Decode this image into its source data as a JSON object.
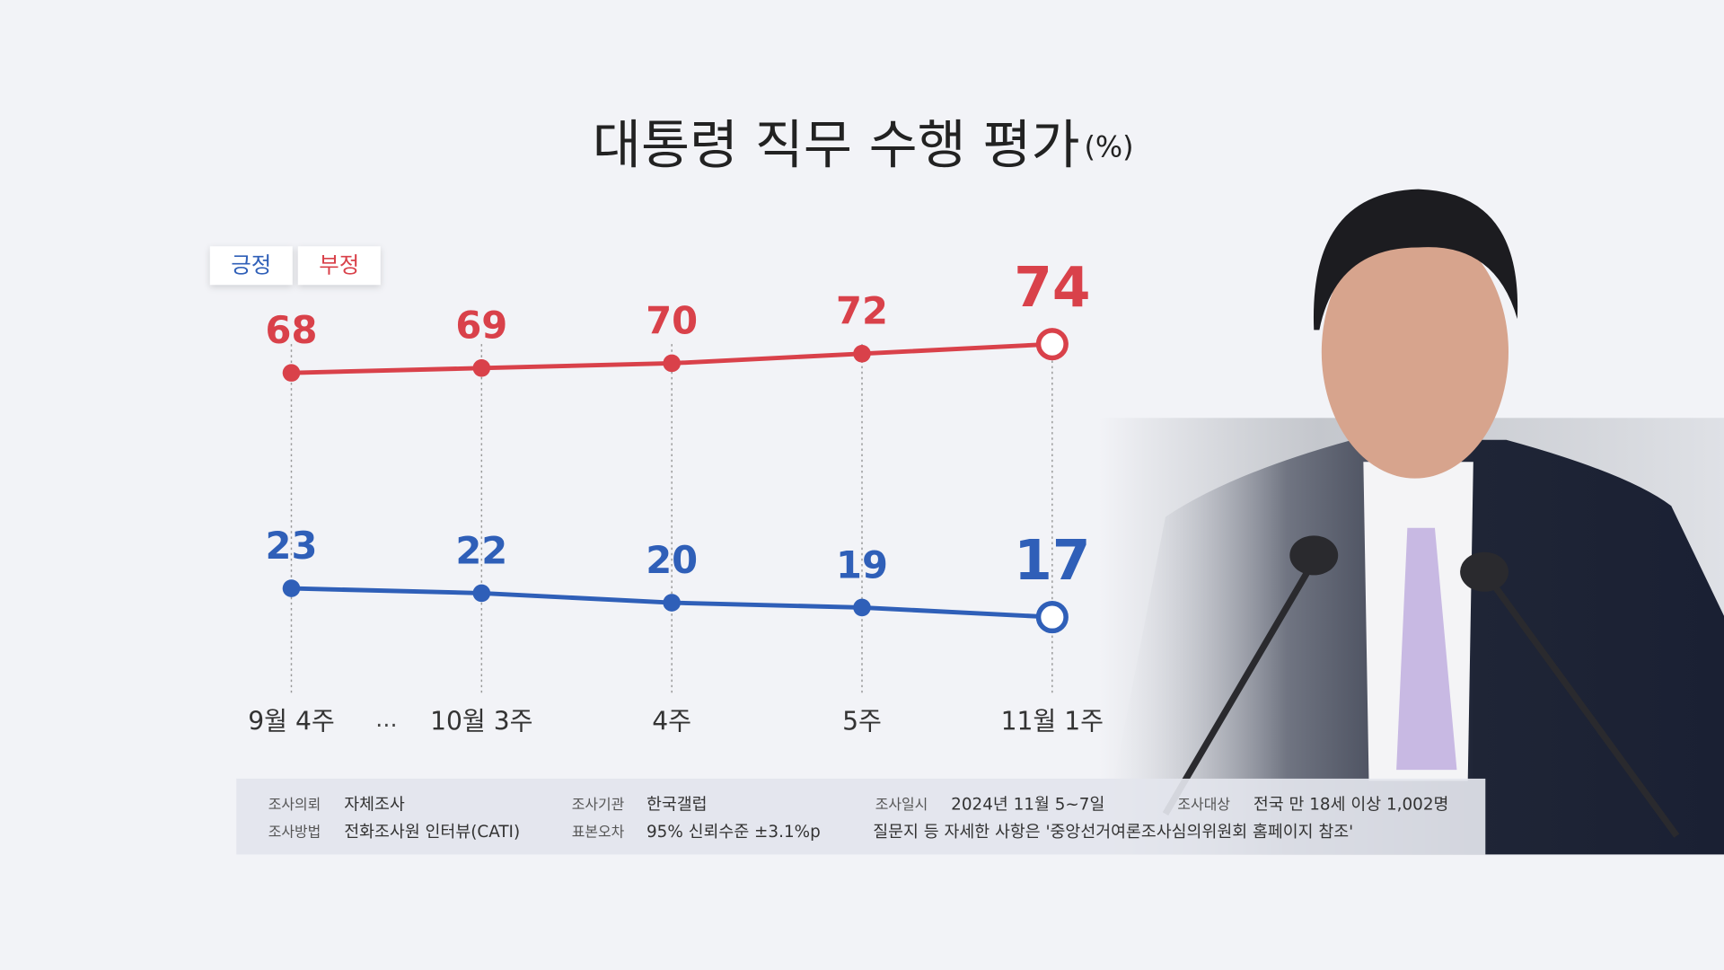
{
  "chart_data": {
    "type": "line",
    "title": "대통령 직무 수행 평가",
    "title_unit": "(%)",
    "categories": [
      "9월 4주",
      "10월 3주",
      "4주",
      "5주",
      "11월 1주"
    ],
    "category_break": "…",
    "series": [
      {
        "name": "긍정",
        "color": "#2f5fb8",
        "values": [
          23,
          22,
          20,
          19,
          17
        ]
      },
      {
        "name": "부정",
        "color": "#d9414a",
        "values": [
          68,
          69,
          70,
          72,
          74
        ]
      }
    ],
    "ylim": [
      10,
      85
    ],
    "survey_info": [
      {
        "label": "조사의뢰",
        "value": "자체조사"
      },
      {
        "label": "조사방법",
        "value": "전화조사원 인터뷰(CATI)"
      },
      {
        "label": "조사기관",
        "value": "한국갤럽"
      },
      {
        "label": "표본오차",
        "value": "95% 신뢰수준 ±3.1%p"
      },
      {
        "label": "조사일시",
        "value": "2024년 11월 5~7일"
      },
      {
        "label": "조사대상",
        "value": "전국 만 18세 이상 1,002명"
      }
    ],
    "note": "질문지 등 자세한 사항은 '중앙선거여론조사심의위원회 홈페이지 참조'"
  }
}
